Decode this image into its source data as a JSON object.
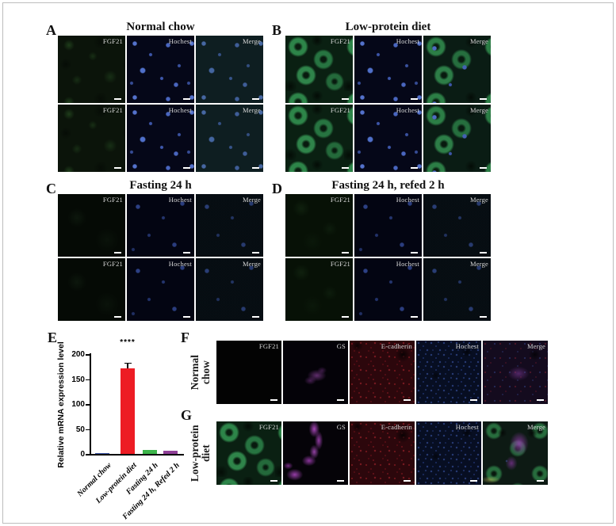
{
  "figure": {
    "border_color": "#bdbdbd",
    "panels": {
      "A": {
        "letter": "A",
        "title": "Normal chow",
        "cols": [
          "FGF21",
          "Hochest",
          "Merge"
        ]
      },
      "B": {
        "letter": "B",
        "title": "Low-protein diet",
        "cols": [
          "FGF21",
          "Hochest",
          "Merge"
        ]
      },
      "C": {
        "letter": "C",
        "title": "Fasting 24 h",
        "cols": [
          "FGF21",
          "Hochest",
          "Merge"
        ]
      },
      "D": {
        "letter": "D",
        "title": "Fasting 24 h, refed 2 h",
        "cols": [
          "FGF21",
          "Hochest",
          "Merge"
        ]
      },
      "E": {
        "letter": "E"
      },
      "F": {
        "letter": "F",
        "row_label_l1": "Normal",
        "row_label_l2": "chow",
        "cols": [
          "FGF21",
          "GS",
          "E-cadherin",
          "Hochest",
          "Merge"
        ]
      },
      "G": {
        "letter": "G",
        "row_label_l1": "Low-protein",
        "row_label_l2": "diet",
        "cols": [
          "FGF21",
          "GS",
          "E-cadherin",
          "Hochest",
          "Merge"
        ]
      }
    }
  },
  "chart_data": {
    "type": "bar",
    "title": "",
    "xlabel": "",
    "ylabel": "Relative mRNA expression level",
    "categories": [
      "Normal chow",
      "Low-protein diet",
      "Fasting 24 h",
      "Fasting 24 h, Refed 2 h"
    ],
    "values": [
      2,
      170,
      8,
      7
    ],
    "errors": [
      1,
      9,
      2,
      2
    ],
    "bar_colors": [
      "#3a53a4",
      "#ed1c24",
      "#3cb54a",
      "#8f3f97"
    ],
    "ylim": [
      0,
      200
    ],
    "yticks": [
      0,
      50,
      100,
      150,
      200
    ],
    "grid": false,
    "significance": {
      "bar_index": 1,
      "label": "****"
    }
  }
}
